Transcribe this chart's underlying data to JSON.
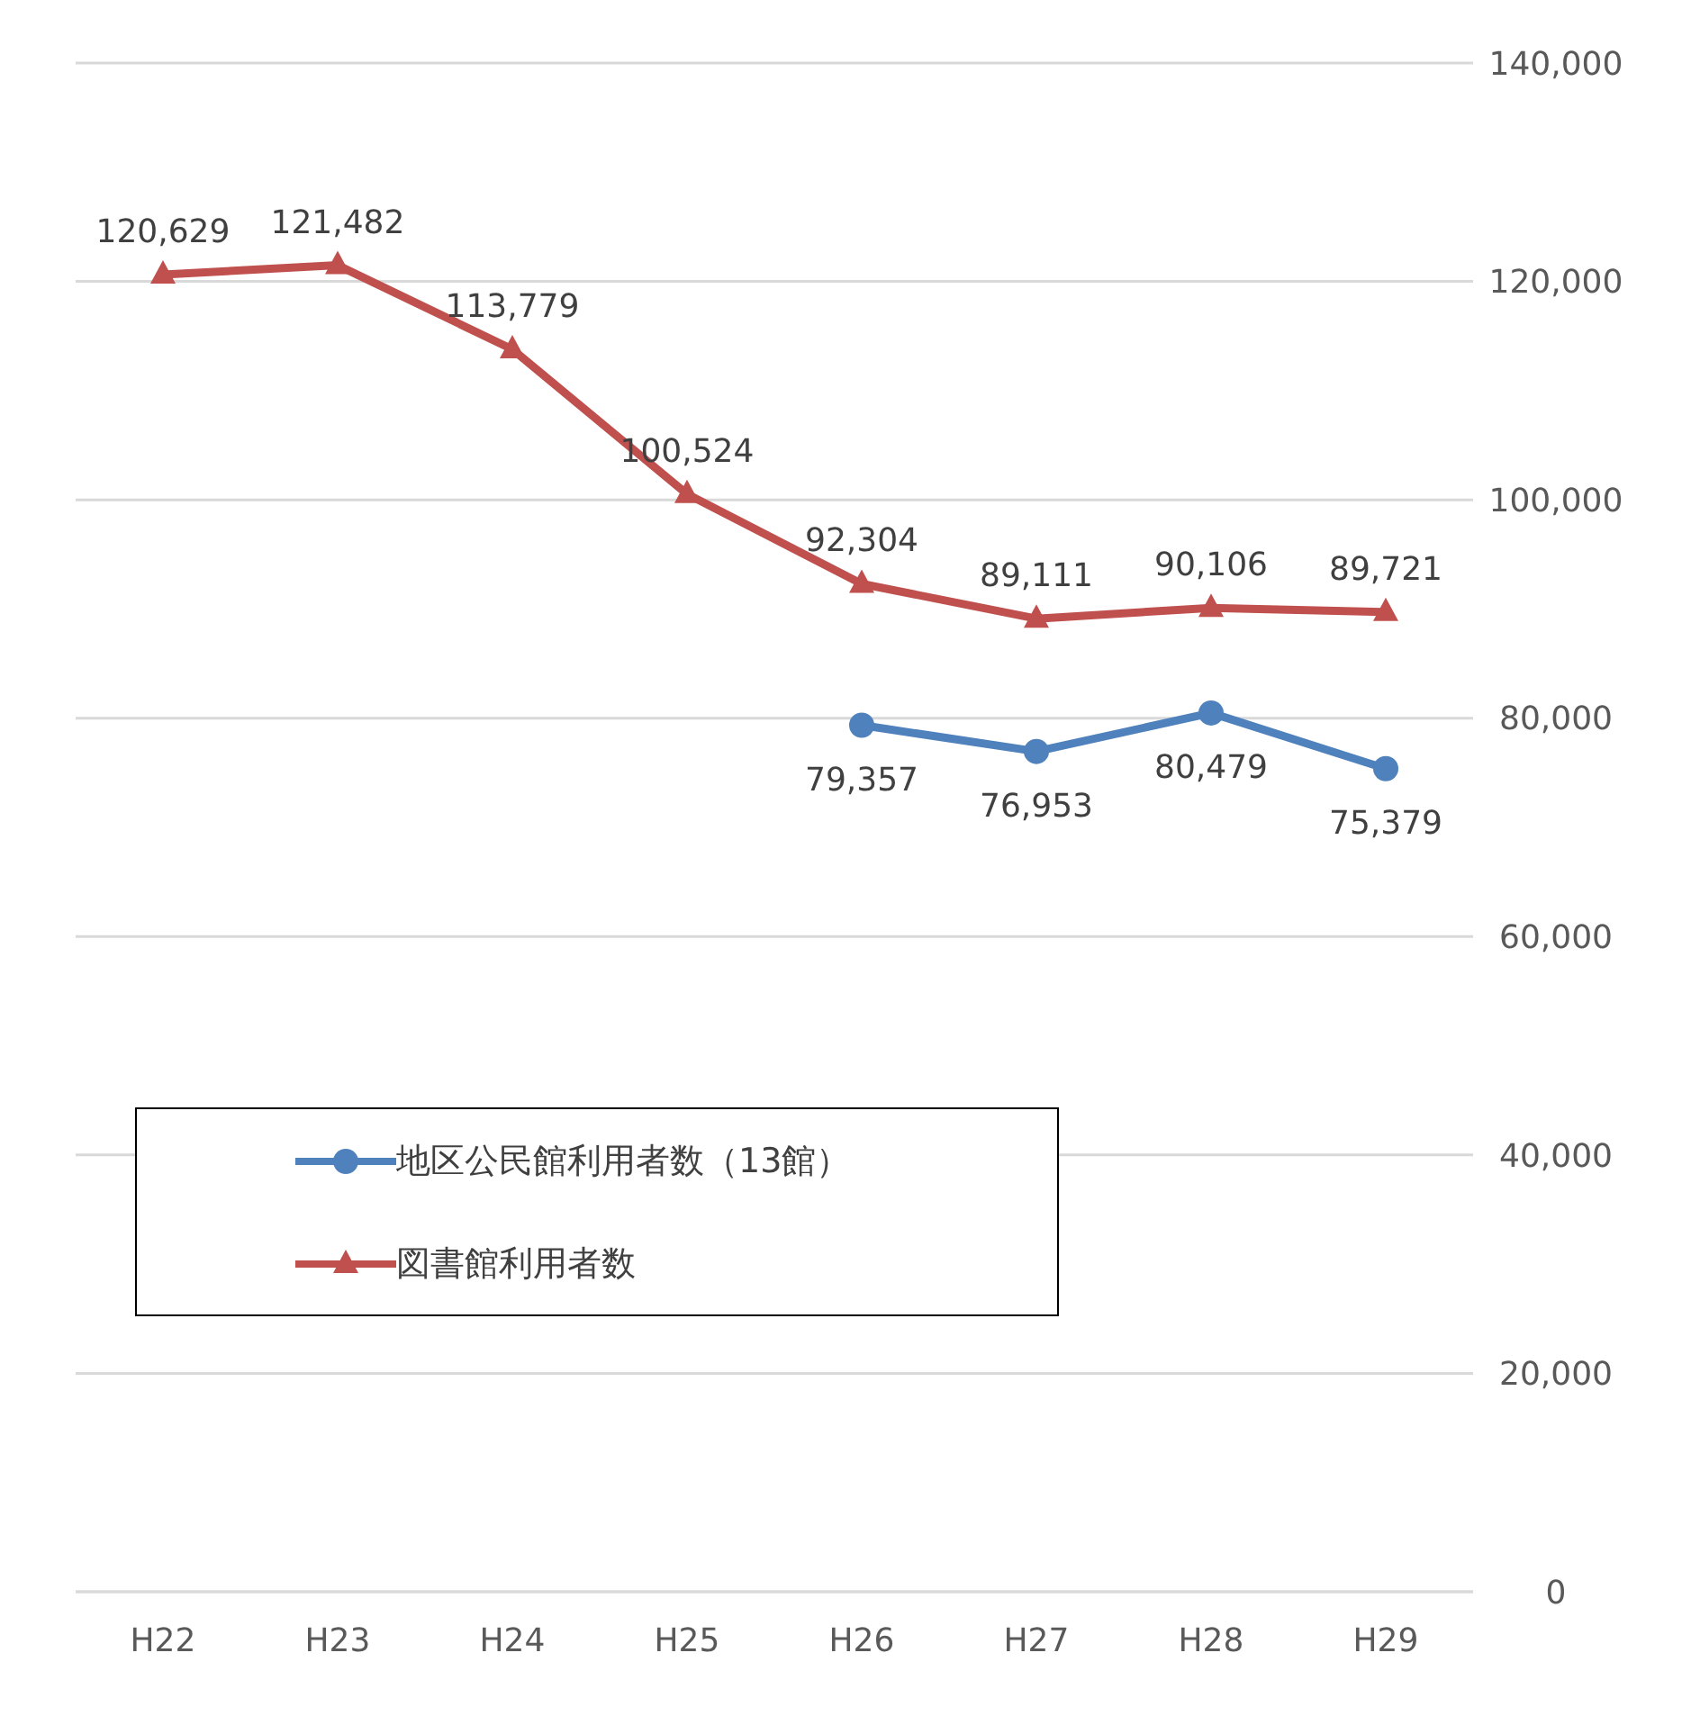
{
  "chart_data": {
    "type": "line",
    "categories": [
      "H22",
      "H23",
      "H24",
      "H25",
      "H26",
      "H27",
      "H28",
      "H29"
    ],
    "series": [
      {
        "name": "地区公民館利用者数（13館）",
        "color": "#4f81bd",
        "marker": "circle",
        "values": [
          null,
          null,
          null,
          null,
          79357,
          76953,
          80479,
          75379
        ],
        "value_labels": [
          null,
          null,
          null,
          null,
          "79,357",
          "76,953",
          "80,479",
          "75,379"
        ]
      },
      {
        "name": "図書館利用者数",
        "color": "#c0504d",
        "marker": "triangle",
        "values": [
          120629,
          121482,
          113779,
          100524,
          92304,
          89111,
          90106,
          89721
        ],
        "value_labels": [
          "120,629",
          "121,482",
          "113,779",
          "100,524",
          "92,304",
          "89,111",
          "90,106",
          "89,721"
        ]
      }
    ],
    "ylim": [
      0,
      140000
    ],
    "yticks": [
      0,
      {
        "value": 20000,
        "label": "20,000"
      },
      {
        "value": 40000,
        "label": "40,000"
      },
      {
        "value": 60000,
        "label": "60,000"
      },
      {
        "value": 80000,
        "label": "80,000"
      },
      {
        "value": 100000,
        "label": "100,000"
      },
      {
        "value": 120000,
        "label": "120,000"
      },
      {
        "value": 140000,
        "label": "140,000"
      }
    ],
    "grid": "y",
    "legend": "left"
  }
}
